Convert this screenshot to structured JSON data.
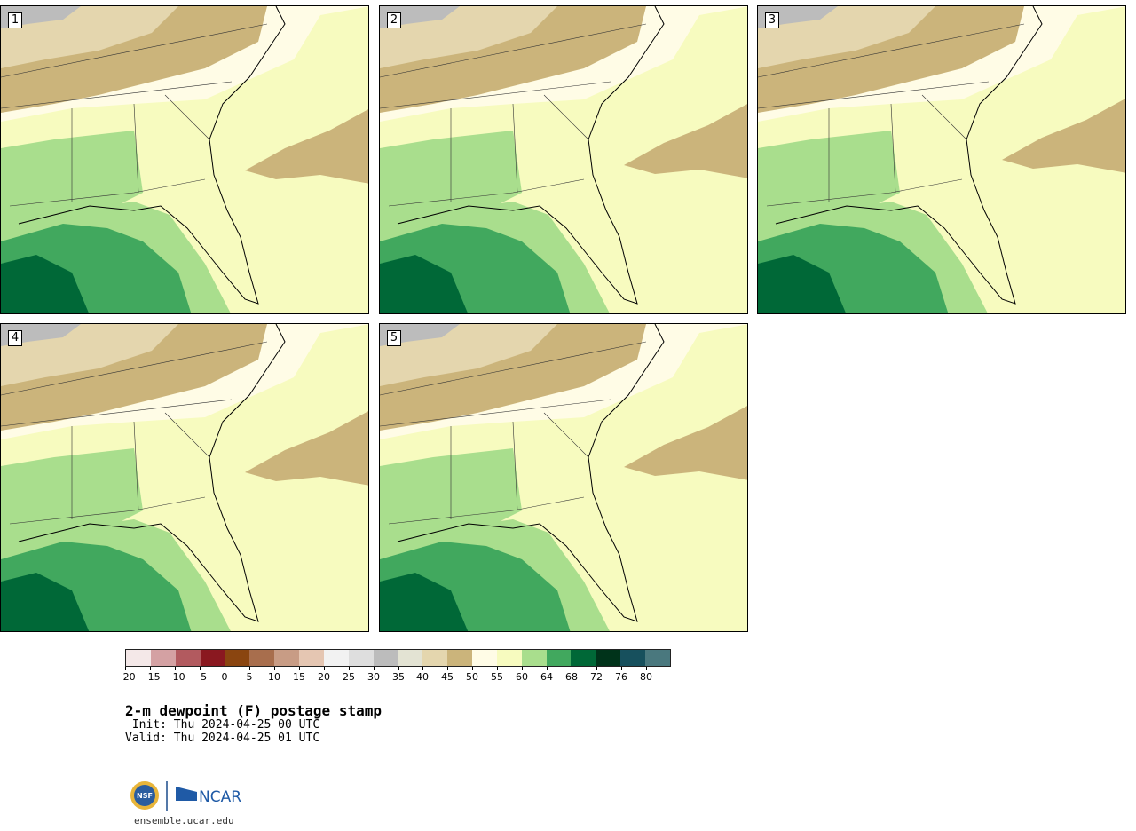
{
  "panels": [
    {
      "label": "1"
    },
    {
      "label": "2"
    },
    {
      "label": "3"
    },
    {
      "label": "4"
    },
    {
      "label": "5"
    }
  ],
  "colorbar": {
    "colors": [
      "#f4e8e8",
      "#d4a1a3",
      "#b25a5f",
      "#8a1820",
      "#8a4510",
      "#a86e4d",
      "#c89c85",
      "#e5c6b2",
      "#f2f2f2",
      "#dedede",
      "#bcbcbc",
      "#e3e3d3",
      "#e4d6ae",
      "#cbb47b",
      "#fffce6",
      "#f7fbbf",
      "#a9de8d",
      "#41a85e",
      "#006837",
      "#00331a",
      "#17505d",
      "#4a787e"
    ],
    "tick_labels": [
      "−20",
      "−15",
      "−10",
      "−5",
      "0",
      "5",
      "10",
      "15",
      "20",
      "25",
      "30",
      "35",
      "40",
      "45",
      "50",
      "55",
      "60",
      "64",
      "68",
      "72",
      "76",
      "80"
    ]
  },
  "title": "2-m dewpoint (F) postage stamp",
  "init_line": " Init: Thu 2024-04-25 00 UTC",
  "valid_line": "Valid: Thu 2024-04-25 01 UTC",
  "logo": {
    "nsf": "NSF",
    "ncar": "NCAR"
  },
  "website": "ensemble.ucar.edu"
}
